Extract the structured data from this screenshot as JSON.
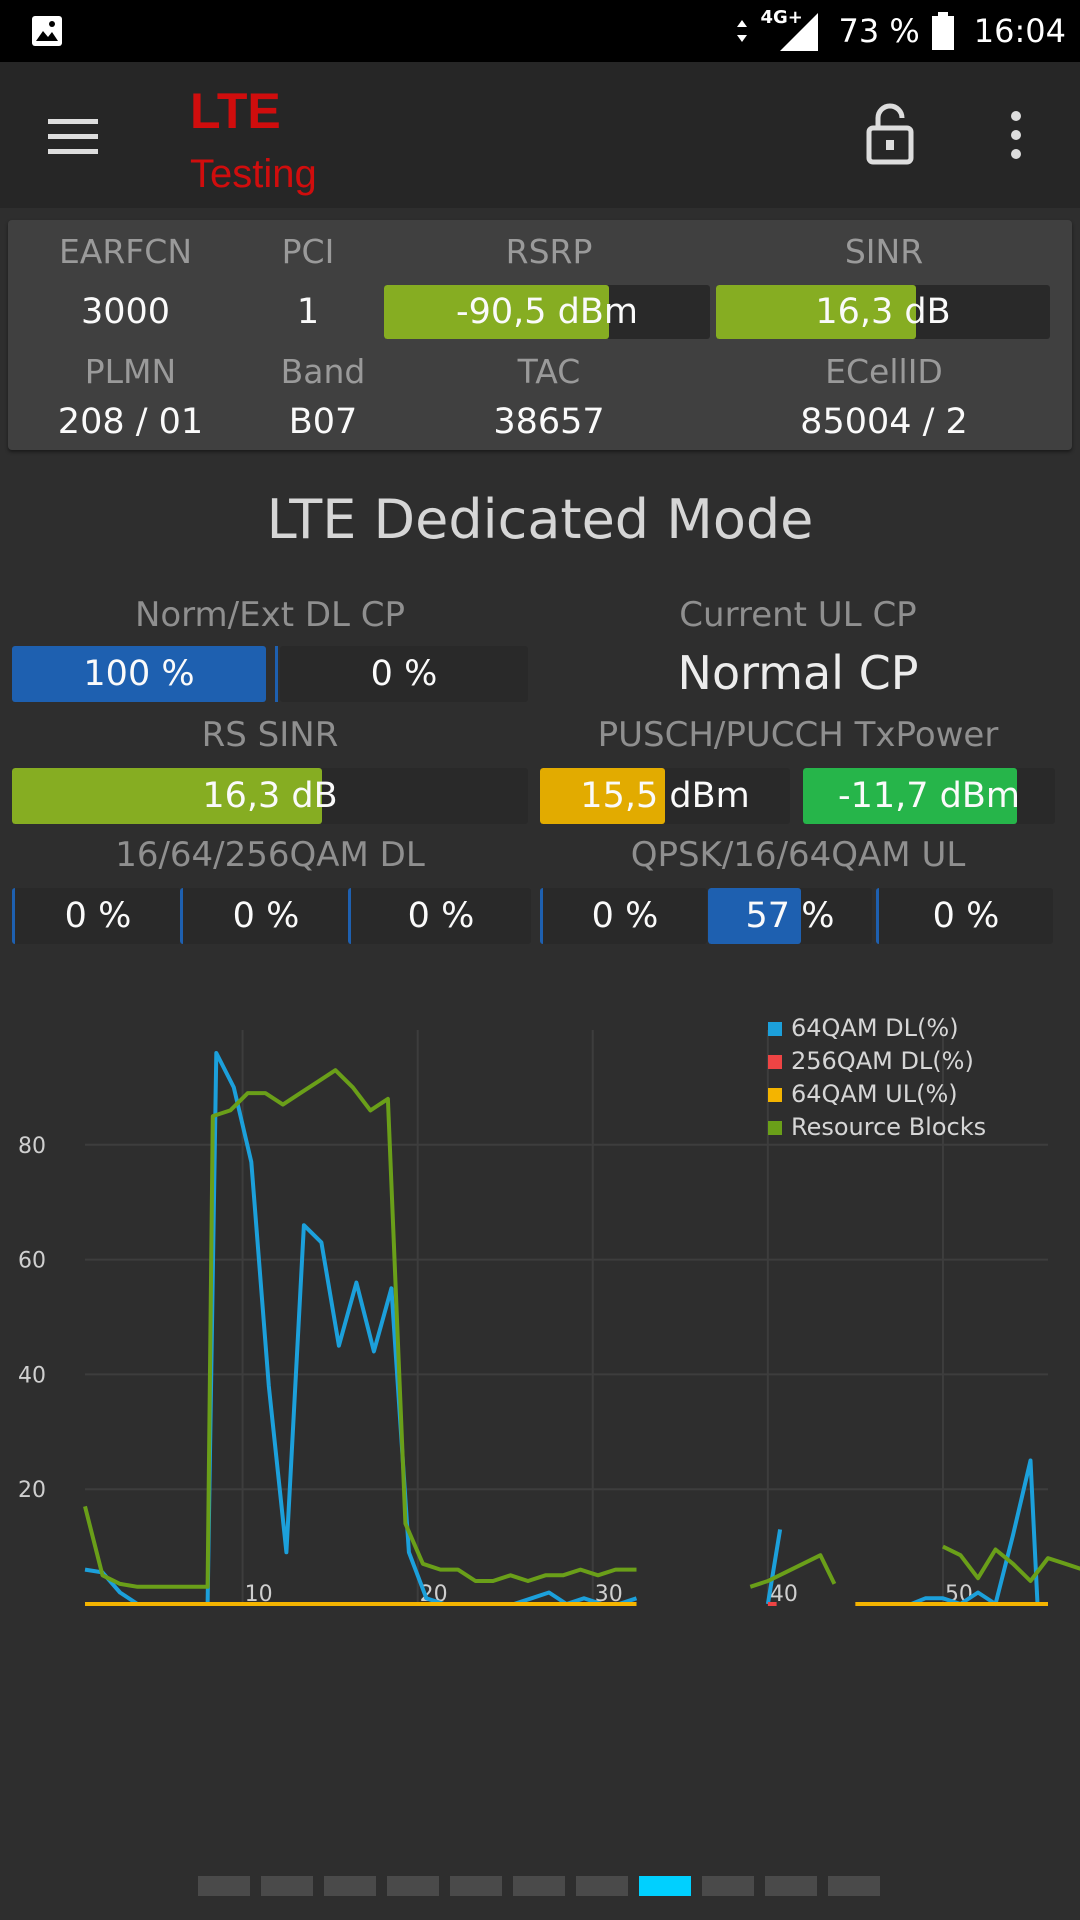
{
  "status_bar": {
    "battery": "73 %",
    "time": "16:04",
    "network": "4G+"
  },
  "app": {
    "title_line1": "LTE",
    "title_line2": "Testing"
  },
  "cell_info": {
    "earfcn_label": "EARFCN",
    "earfcn": "3000",
    "pci_label": "PCI",
    "pci": "1",
    "rsrp_label": "RSRP",
    "rsrp": "-90,5 dBm",
    "rsrp_fill": 0.69,
    "sinr_label": "SINR",
    "sinr": "16,3 dB",
    "sinr_fill": 0.6,
    "plmn_label": "PLMN",
    "plmn": "208 / 01",
    "band_label": "Band",
    "band": "B07",
    "tac_label": "TAC",
    "tac": "38657",
    "ecellid_label": "ECellID",
    "ecellid": "85004 / 2"
  },
  "dedicated": {
    "title": "LTE Dedicated Mode",
    "dl_cp_label": "Norm/Ext DL CP",
    "dl_cp_norm": "100 %",
    "dl_cp_ext": "0 %",
    "ul_cp_label": "Current UL CP",
    "ul_cp": "Normal CP",
    "rs_sinr_label": "RS SINR",
    "rs_sinr": "16,3 dB",
    "rs_sinr_fill": 0.6,
    "txpower_label": "PUSCH/PUCCH TxPower",
    "pusch": "15,5 dBm",
    "pucch": "-11,7 dBm",
    "qam_dl_label": "16/64/256QAM DL",
    "qam_dl": [
      "0 %",
      "0 %",
      "0 %"
    ],
    "qam_ul_label": "QPSK/16/64QAM UL",
    "qam_ul": [
      "0 %",
      "57 %",
      "0 %"
    ]
  },
  "colors": {
    "green": "#86ad22",
    "blue": "#1e60b0",
    "yellow": "#e2ab00",
    "bright_green": "#26b54a",
    "red_title": "#d00d0d"
  },
  "chart_data": {
    "type": "line",
    "xlim": [
      1,
      56
    ],
    "ylim": [
      0,
      100
    ],
    "x_ticks": [
      10,
      20,
      30,
      40,
      50
    ],
    "y_ticks": [
      20,
      40,
      60,
      80
    ],
    "legend_position": "top-right",
    "series": [
      {
        "name": "64QAM DL(%)",
        "color": "#1ca0db",
        "segments": [
          [
            [
              1,
              6
            ],
            [
              2,
              5.5
            ],
            [
              3,
              2
            ],
            [
              4,
              0
            ],
            [
              5,
              0
            ],
            [
              6,
              0
            ],
            [
              7,
              0
            ],
            [
              8,
              0
            ],
            [
              8.5,
              96
            ],
            [
              9.5,
              90
            ],
            [
              10.5,
              77
            ],
            [
              11.5,
              38
            ],
            [
              12.5,
              9
            ],
            [
              13.5,
              66
            ],
            [
              14.5,
              63
            ],
            [
              15.5,
              45
            ],
            [
              16.5,
              56
            ],
            [
              17.5,
              44
            ],
            [
              18.5,
              55
            ],
            [
              19.5,
              9
            ],
            [
              20.5,
              1
            ],
            [
              21.5,
              0
            ],
            [
              22.5,
              0
            ],
            [
              23.5,
              0
            ],
            [
              24.5,
              0
            ],
            [
              25.5,
              0
            ],
            [
              26.5,
              1
            ],
            [
              27.5,
              2
            ],
            [
              28.5,
              0
            ],
            [
              29.5,
              1
            ],
            [
              30.5,
              0
            ],
            [
              31.5,
              0
            ],
            [
              32.5,
              1
            ]
          ],
          [
            [
              40,
              0
            ],
            [
              40.7,
              13
            ]
          ],
          [
            [
              48.2,
              0
            ],
            [
              49,
              1
            ],
            [
              50,
              1
            ],
            [
              51,
              0
            ],
            [
              52,
              2
            ],
            [
              53,
              0
            ],
            [
              54,
              12
            ],
            [
              55,
              25
            ],
            [
              55.4,
              0
            ]
          ]
        ]
      },
      {
        "name": "256QAM DL(%)",
        "color": "#ee4444",
        "segments": [
          [
            [
              40,
              0
            ],
            [
              40.5,
              0
            ]
          ],
          [
            [
              45,
              0
            ],
            [
              46,
              0
            ]
          ]
        ]
      },
      {
        "name": "64QAM UL(%)",
        "color": "#f4b400",
        "segments": [
          [
            [
              1,
              0
            ],
            [
              32.5,
              0
            ]
          ],
          [
            [
              45,
              0
            ],
            [
              56,
              0
            ]
          ]
        ]
      },
      {
        "name": "Resource Blocks",
        "color": "#6a9f19",
        "segments": [
          [
            [
              1,
              17
            ],
            [
              2,
              5
            ],
            [
              3,
              3.5
            ],
            [
              4,
              3
            ],
            [
              5,
              3
            ],
            [
              6,
              3
            ],
            [
              7,
              3
            ],
            [
              8,
              3
            ],
            [
              8.3,
              85
            ],
            [
              9.3,
              86
            ],
            [
              10.3,
              89
            ],
            [
              11.3,
              89
            ],
            [
              12.3,
              87
            ],
            [
              13.3,
              89
            ],
            [
              14.3,
              91
            ],
            [
              15.3,
              93
            ],
            [
              16.3,
              90
            ],
            [
              17.3,
              86
            ],
            [
              18.3,
              88
            ],
            [
              19.3,
              14
            ],
            [
              20.3,
              7
            ],
            [
              21.3,
              6
            ],
            [
              22.3,
              6
            ],
            [
              23.3,
              4
            ],
            [
              24.3,
              4
            ],
            [
              25.3,
              5
            ],
            [
              26.3,
              4
            ],
            [
              27.3,
              5
            ],
            [
              28.3,
              5
            ],
            [
              29.3,
              6
            ],
            [
              30.3,
              5
            ],
            [
              31.3,
              6
            ],
            [
              32.5,
              6
            ]
          ],
          [
            [
              39,
              3
            ],
            [
              40,
              4
            ],
            [
              41,
              5.5
            ],
            [
              42,
              7
            ],
            [
              43,
              8.5
            ],
            [
              43.8,
              3.5
            ]
          ],
          [
            [
              50,
              10
            ],
            [
              51,
              8.5
            ],
            [
              52,
              4.5
            ],
            [
              53,
              9.5
            ],
            [
              54,
              7
            ],
            [
              55,
              4
            ],
            [
              56,
              8
            ],
            [
              57,
              7
            ],
            [
              58,
              6
            ],
            [
              58.3,
              33
            ]
          ]
        ]
      }
    ]
  }
}
